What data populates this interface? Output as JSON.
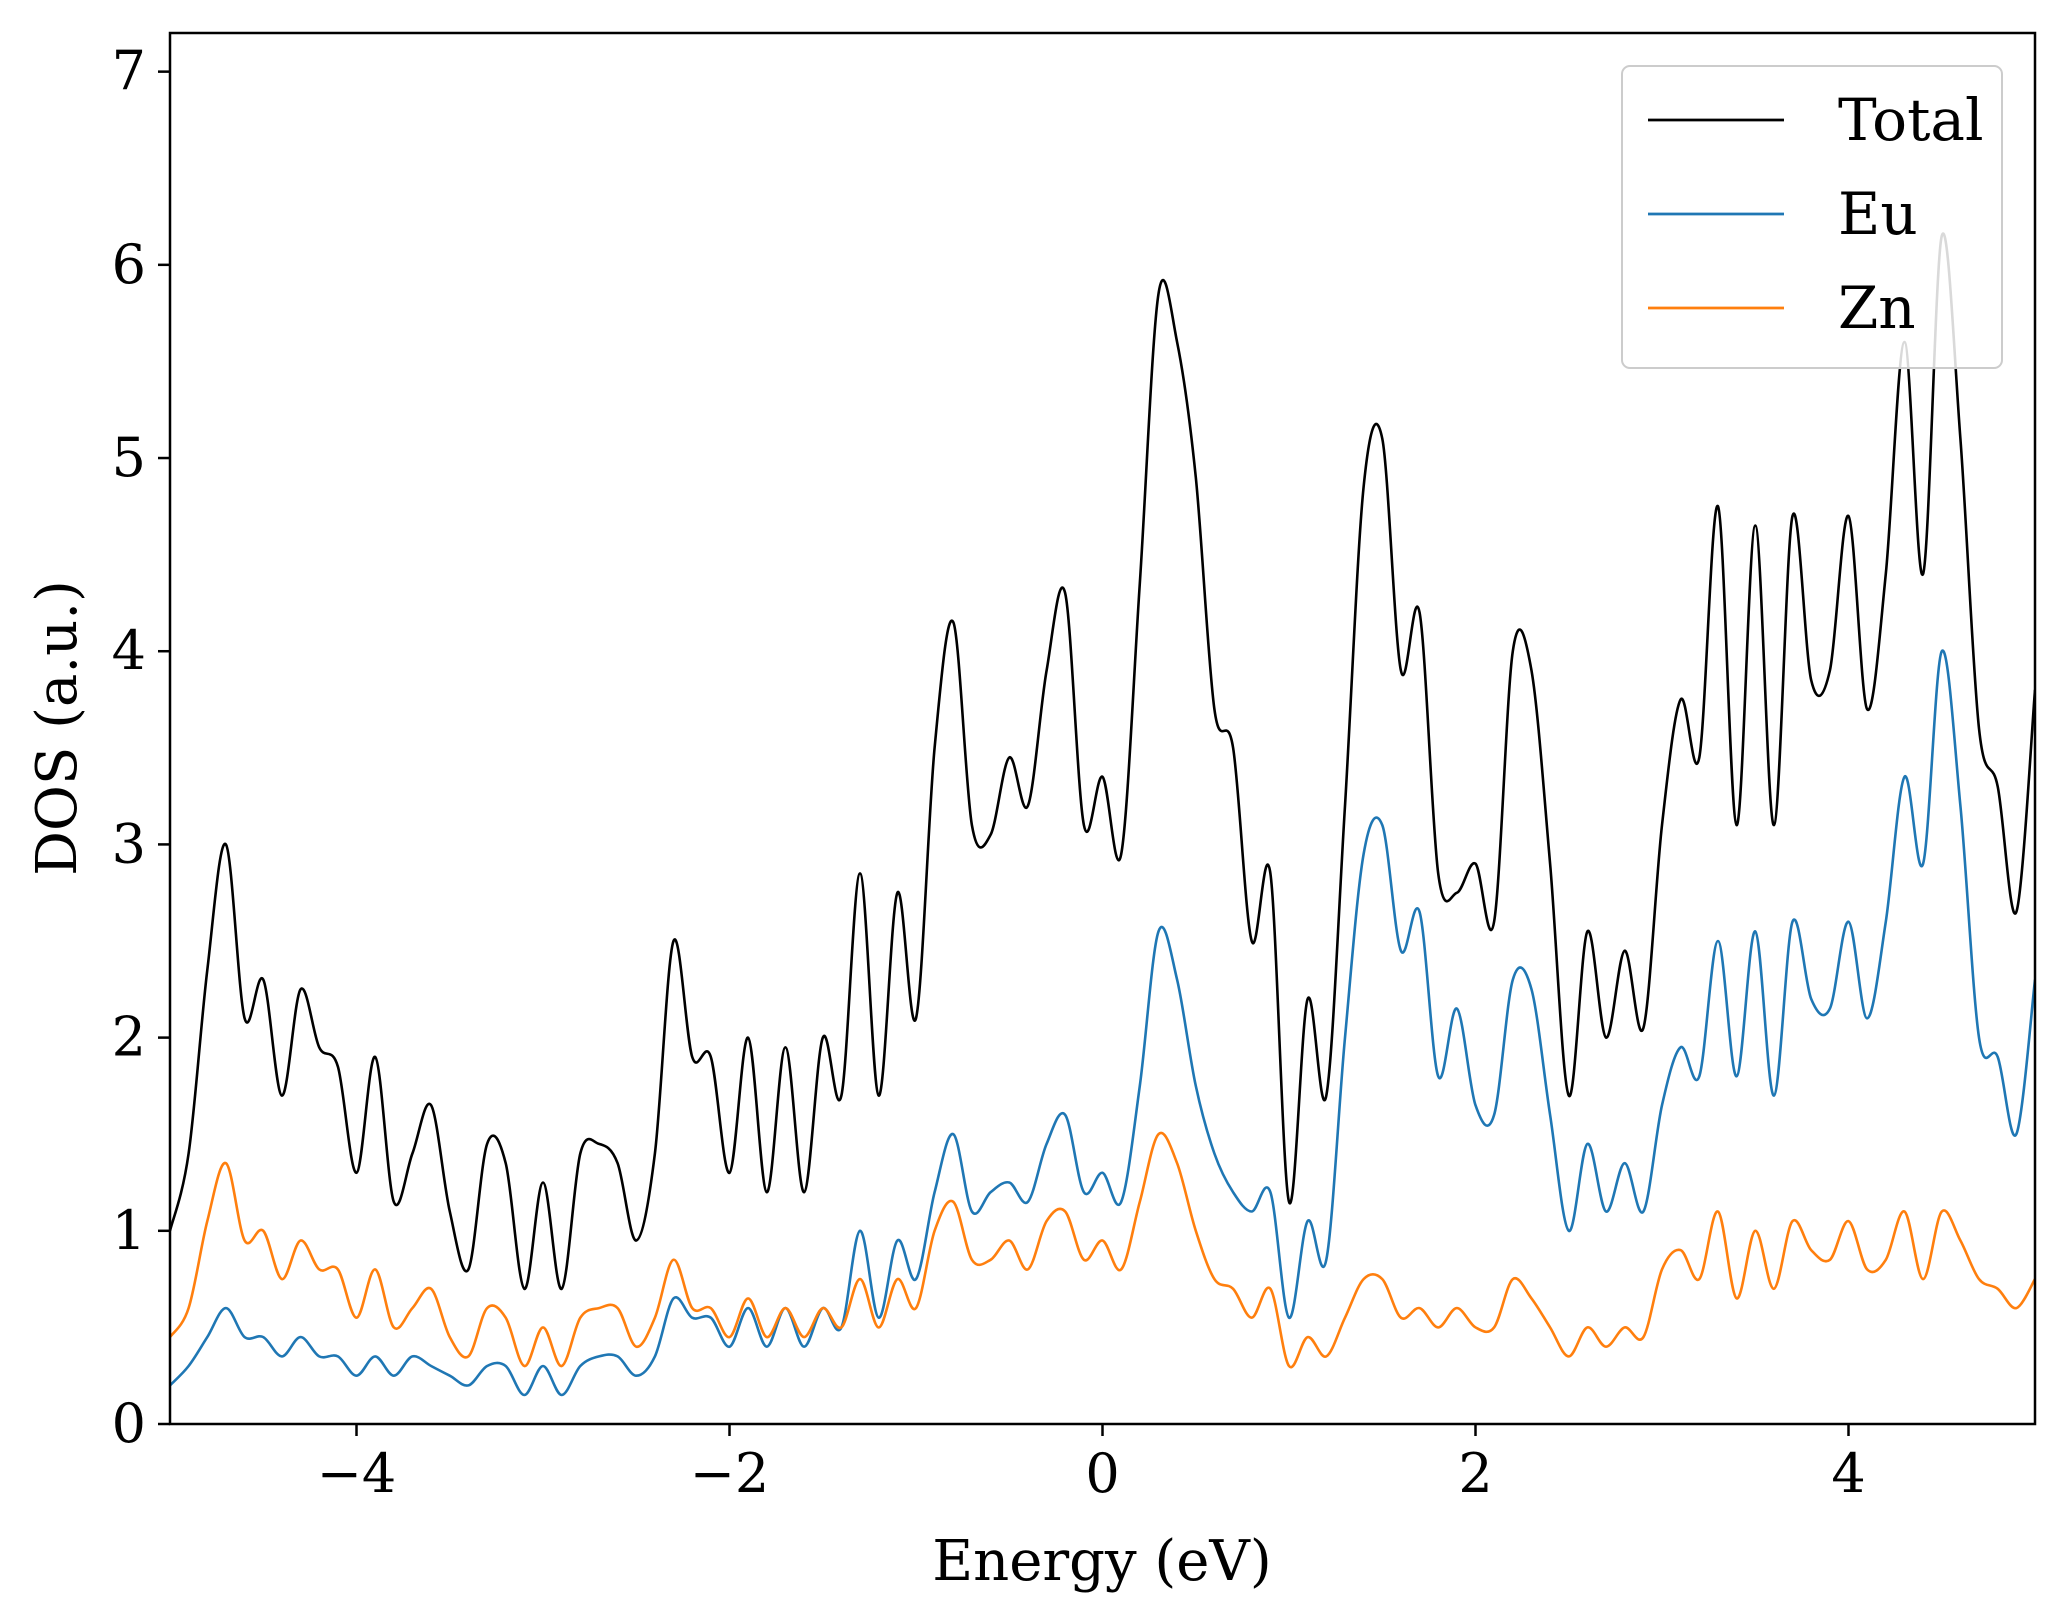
{
  "chart_data": {
    "type": "line",
    "xlabel": "Energy (eV)",
    "ylabel": "DOS (a.u.)",
    "xlim": [
      -5,
      5
    ],
    "ylim": [
      0,
      7.2
    ],
    "xticks": [
      -4,
      -2,
      0,
      2,
      4
    ],
    "xtick_labels": [
      "−4",
      "−2",
      "0",
      "2",
      "4"
    ],
    "yticks": [
      0,
      1,
      2,
      3,
      4,
      5,
      6,
      7
    ],
    "ytick_labels": [
      "0",
      "1",
      "2",
      "3",
      "4",
      "5",
      "6",
      "7"
    ],
    "grid": false,
    "legend_position": "top-right",
    "x": [
      -5.0,
      -4.9,
      -4.8,
      -4.7,
      -4.6,
      -4.5,
      -4.4,
      -4.3,
      -4.2,
      -4.1,
      -4.0,
      -3.9,
      -3.8,
      -3.7,
      -3.6,
      -3.5,
      -3.4,
      -3.3,
      -3.2,
      -3.1,
      -3.0,
      -2.9,
      -2.8,
      -2.7,
      -2.6,
      -2.5,
      -2.4,
      -2.3,
      -2.2,
      -2.1,
      -2.0,
      -1.9,
      -1.8,
      -1.7,
      -1.6,
      -1.5,
      -1.4,
      -1.3,
      -1.2,
      -1.1,
      -1.0,
      -0.9,
      -0.8,
      -0.7,
      -0.6,
      -0.5,
      -0.4,
      -0.3,
      -0.2,
      -0.1,
      0.0,
      0.1,
      0.2,
      0.3,
      0.4,
      0.5,
      0.6,
      0.7,
      0.8,
      0.9,
      1.0,
      1.1,
      1.2,
      1.3,
      1.4,
      1.5,
      1.6,
      1.7,
      1.8,
      1.9,
      2.0,
      2.1,
      2.2,
      2.3,
      2.4,
      2.5,
      2.6,
      2.7,
      2.8,
      2.9,
      3.0,
      3.1,
      3.2,
      3.3,
      3.4,
      3.5,
      3.6,
      3.7,
      3.8,
      3.9,
      4.0,
      4.1,
      4.2,
      4.3,
      4.4,
      4.5,
      4.6,
      4.7,
      4.8,
      4.9,
      5.0
    ],
    "series": [
      {
        "name": "Total",
        "color": "#000000",
        "values": [
          1.0,
          1.4,
          2.35,
          3.0,
          2.1,
          2.3,
          1.7,
          2.25,
          1.95,
          1.85,
          1.3,
          1.9,
          1.15,
          1.4,
          1.65,
          1.1,
          0.8,
          1.45,
          1.35,
          0.7,
          1.25,
          0.7,
          1.4,
          1.45,
          1.35,
          0.95,
          1.4,
          2.5,
          1.9,
          1.9,
          1.3,
          2.0,
          1.2,
          1.95,
          1.2,
          2.0,
          1.7,
          2.85,
          1.7,
          2.75,
          2.1,
          3.5,
          4.15,
          3.1,
          3.05,
          3.45,
          3.2,
          3.9,
          4.3,
          3.1,
          3.35,
          2.95,
          4.35,
          5.85,
          5.6,
          4.9,
          3.7,
          3.5,
          2.5,
          2.85,
          1.15,
          2.2,
          1.7,
          3.2,
          4.85,
          5.1,
          3.9,
          4.2,
          2.85,
          2.75,
          2.9,
          2.6,
          4.0,
          3.9,
          2.9,
          1.7,
          2.55,
          2.0,
          2.45,
          2.05,
          3.1,
          3.75,
          3.45,
          4.75,
          3.1,
          4.65,
          3.1,
          4.7,
          3.85,
          3.9,
          4.7,
          3.7,
          4.4,
          5.6,
          4.4,
          6.15,
          5.1,
          3.6,
          3.3,
          2.65,
          3.8
        ]
      },
      {
        "name": "Eu",
        "color": "#1f77b4",
        "values": [
          0.2,
          0.3,
          0.45,
          0.6,
          0.45,
          0.45,
          0.35,
          0.45,
          0.35,
          0.35,
          0.25,
          0.35,
          0.25,
          0.35,
          0.3,
          0.25,
          0.2,
          0.3,
          0.3,
          0.15,
          0.3,
          0.15,
          0.3,
          0.35,
          0.35,
          0.25,
          0.35,
          0.65,
          0.55,
          0.55,
          0.4,
          0.6,
          0.4,
          0.6,
          0.4,
          0.6,
          0.5,
          1.0,
          0.55,
          0.95,
          0.75,
          1.2,
          1.5,
          1.1,
          1.2,
          1.25,
          1.15,
          1.45,
          1.6,
          1.2,
          1.3,
          1.15,
          1.75,
          2.55,
          2.3,
          1.75,
          1.4,
          1.2,
          1.1,
          1.2,
          0.55,
          1.05,
          0.85,
          2.0,
          2.95,
          3.1,
          2.45,
          2.65,
          1.8,
          2.15,
          1.65,
          1.6,
          2.3,
          2.25,
          1.6,
          1.0,
          1.45,
          1.1,
          1.35,
          1.1,
          1.65,
          1.95,
          1.8,
          2.5,
          1.8,
          2.55,
          1.7,
          2.6,
          2.2,
          2.15,
          2.6,
          2.1,
          2.6,
          3.35,
          2.9,
          4.0,
          3.2,
          2.0,
          1.9,
          1.5,
          2.3
        ]
      },
      {
        "name": "Zn",
        "color": "#ff7f0e",
        "values": [
          0.45,
          0.6,
          1.05,
          1.35,
          0.95,
          1.0,
          0.75,
          0.95,
          0.8,
          0.8,
          0.55,
          0.8,
          0.5,
          0.6,
          0.7,
          0.45,
          0.35,
          0.6,
          0.55,
          0.3,
          0.5,
          0.3,
          0.55,
          0.6,
          0.6,
          0.4,
          0.55,
          0.85,
          0.6,
          0.6,
          0.45,
          0.65,
          0.45,
          0.6,
          0.45,
          0.6,
          0.5,
          0.75,
          0.5,
          0.75,
          0.6,
          1.0,
          1.15,
          0.85,
          0.85,
          0.95,
          0.8,
          1.05,
          1.1,
          0.85,
          0.95,
          0.8,
          1.15,
          1.5,
          1.35,
          1.0,
          0.75,
          0.7,
          0.55,
          0.7,
          0.3,
          0.45,
          0.35,
          0.55,
          0.75,
          0.75,
          0.55,
          0.6,
          0.5,
          0.6,
          0.5,
          0.5,
          0.75,
          0.65,
          0.5,
          0.35,
          0.5,
          0.4,
          0.5,
          0.45,
          0.8,
          0.9,
          0.75,
          1.1,
          0.65,
          1.0,
          0.7,
          1.05,
          0.9,
          0.85,
          1.05,
          0.8,
          0.85,
          1.1,
          0.75,
          1.1,
          0.95,
          0.75,
          0.7,
          0.6,
          0.75
        ]
      }
    ]
  }
}
